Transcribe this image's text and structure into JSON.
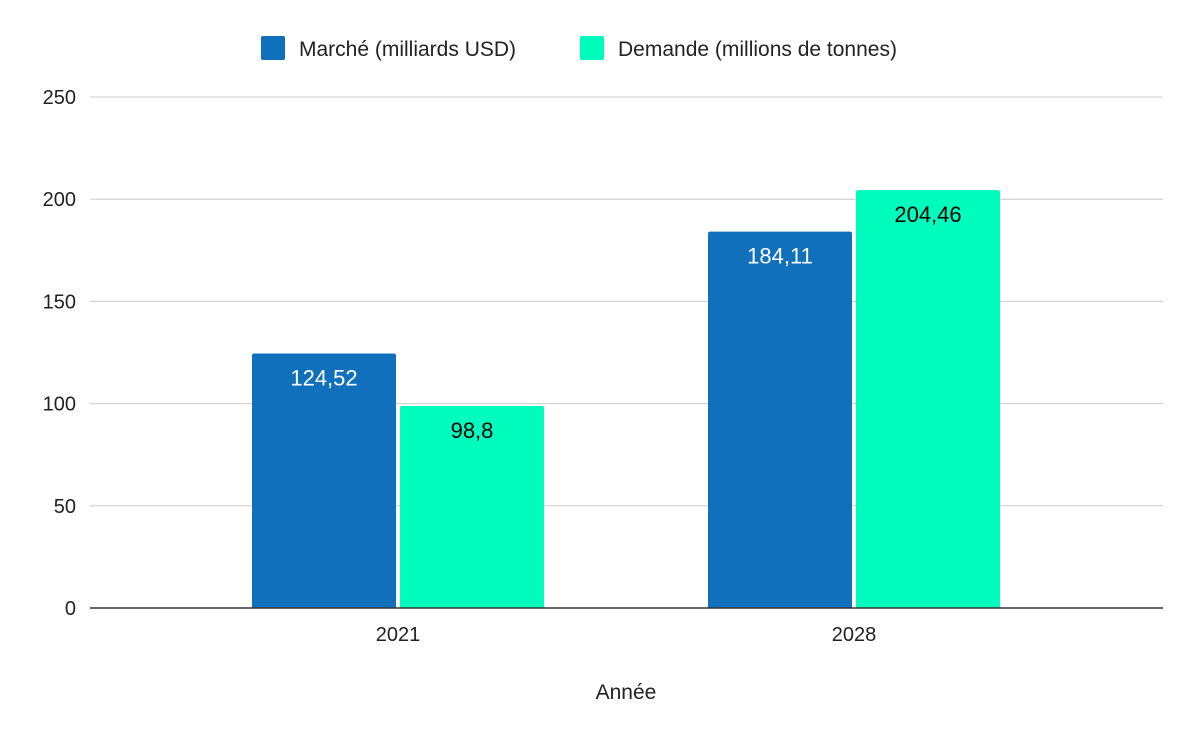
{
  "chart_data": {
    "type": "bar",
    "title": "",
    "xlabel": "Année",
    "ylabel": "",
    "categories": [
      "2021",
      "2028"
    ],
    "series": [
      {
        "name": "Marché (milliards USD)",
        "values": [
          124.52,
          184.11
        ],
        "labels": [
          "124,52",
          "184,11"
        ],
        "color": "#1170bb",
        "label_color": "#ffffff"
      },
      {
        "name": "Demande (millions de tonnes)",
        "values": [
          98.8,
          204.46
        ],
        "labels": [
          "98,8",
          "204,46"
        ],
        "color": "#00fdbd",
        "label_color": "#000000"
      }
    ],
    "ylim": [
      0,
      250
    ],
    "yticks": [
      "0",
      "50",
      "100",
      "150",
      "200",
      "250"
    ],
    "grid": true,
    "legend_position": "top"
  }
}
